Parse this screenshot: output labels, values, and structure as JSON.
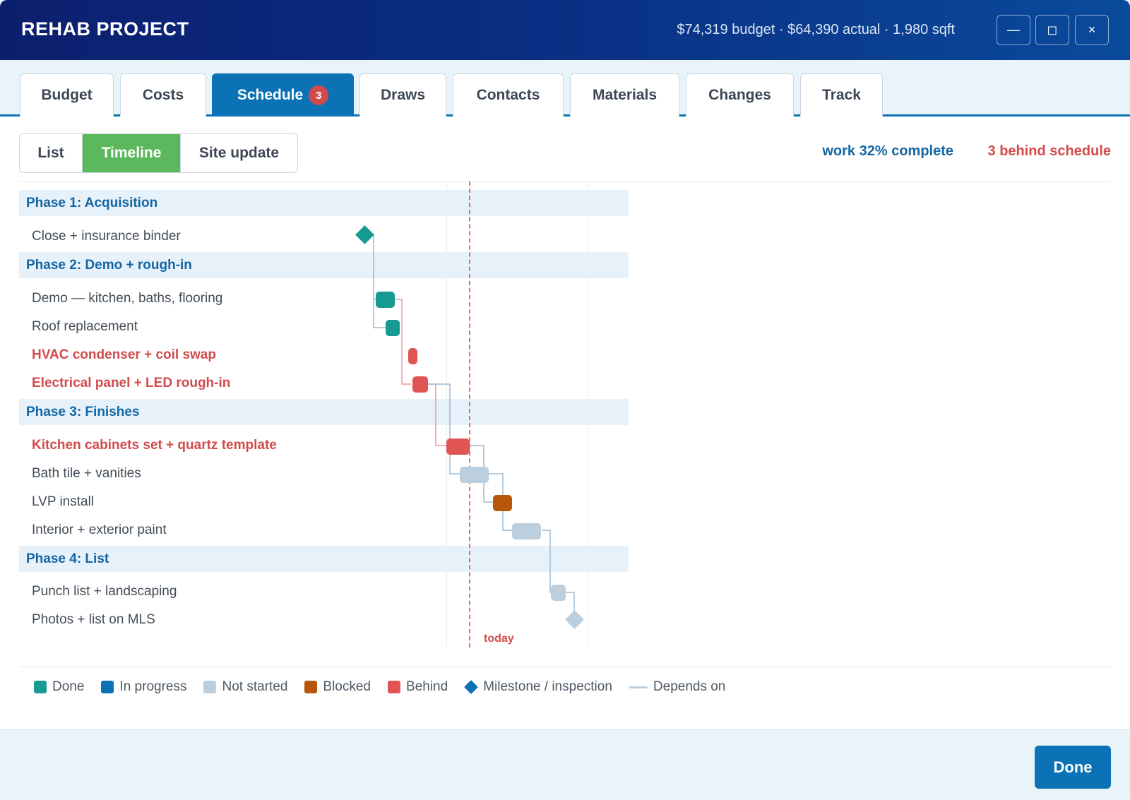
{
  "window": {
    "title": "REHAB PROJECT",
    "summary": "$74,319 budget · $64,390 actual · 1,980 sqft",
    "controls": {
      "minimize": "—",
      "maximize": "◻",
      "close": "×"
    }
  },
  "tabs": [
    {
      "label": "Budget"
    },
    {
      "label": "Costs"
    },
    {
      "label": "Schedule",
      "badge": "3",
      "active": true
    },
    {
      "label": "Draws"
    },
    {
      "label": "Contacts"
    },
    {
      "label": "Materials"
    },
    {
      "label": "Changes"
    },
    {
      "label": "Track"
    }
  ],
  "view_toggle": [
    {
      "label": "List"
    },
    {
      "label": "Timeline",
      "active": true
    },
    {
      "label": "Site update"
    }
  ],
  "status": {
    "progress": "work 32% complete",
    "behind": "3 behind schedule"
  },
  "schedule": {
    "today_label": "today",
    "phases": [
      {
        "name": "Phase 1: Acquisition",
        "tasks": [
          {
            "name": "Close + insurance binder",
            "status": "done",
            "type": "milestone"
          }
        ]
      },
      {
        "name": "Phase 2: Demo + rough-in",
        "tasks": [
          {
            "name": "Demo — kitchen, baths, flooring",
            "status": "done"
          },
          {
            "name": "Roof replacement",
            "status": "done"
          },
          {
            "name": "HVAC condenser + coil swap",
            "status": "behind"
          },
          {
            "name": "Electrical panel + LED rough-in",
            "status": "behind"
          }
        ]
      },
      {
        "name": "Phase 3: Finishes",
        "tasks": [
          {
            "name": "Kitchen cabinets set + quartz template",
            "status": "behind"
          },
          {
            "name": "Bath tile + vanities",
            "status": "not-started"
          },
          {
            "name": "LVP install",
            "status": "blocked"
          },
          {
            "name": "Interior + exterior paint",
            "status": "not-started"
          }
        ]
      },
      {
        "name": "Phase 4: List",
        "tasks": [
          {
            "name": "Punch list + landscaping",
            "status": "not-started"
          },
          {
            "name": "Photos + list on MLS",
            "status": "not-started",
            "type": "milestone"
          }
        ]
      }
    ]
  },
  "legend": [
    {
      "label": "Done",
      "color": "#169b93",
      "shape": "square"
    },
    {
      "label": "In progress",
      "color": "#0b72b5",
      "shape": "square"
    },
    {
      "label": "Not started",
      "color": "#bccfdf",
      "shape": "square"
    },
    {
      "label": "Blocked",
      "color": "#b8560c",
      "shape": "square"
    },
    {
      "label": "Behind",
      "color": "#e05454",
      "shape": "square"
    },
    {
      "label": "Milestone / inspection",
      "color": "#0b72b5",
      "shape": "diamond"
    },
    {
      "label": "Depends on",
      "color": "#bccfdf",
      "shape": "line"
    }
  ],
  "footer": {
    "done_label": "Done"
  }
}
